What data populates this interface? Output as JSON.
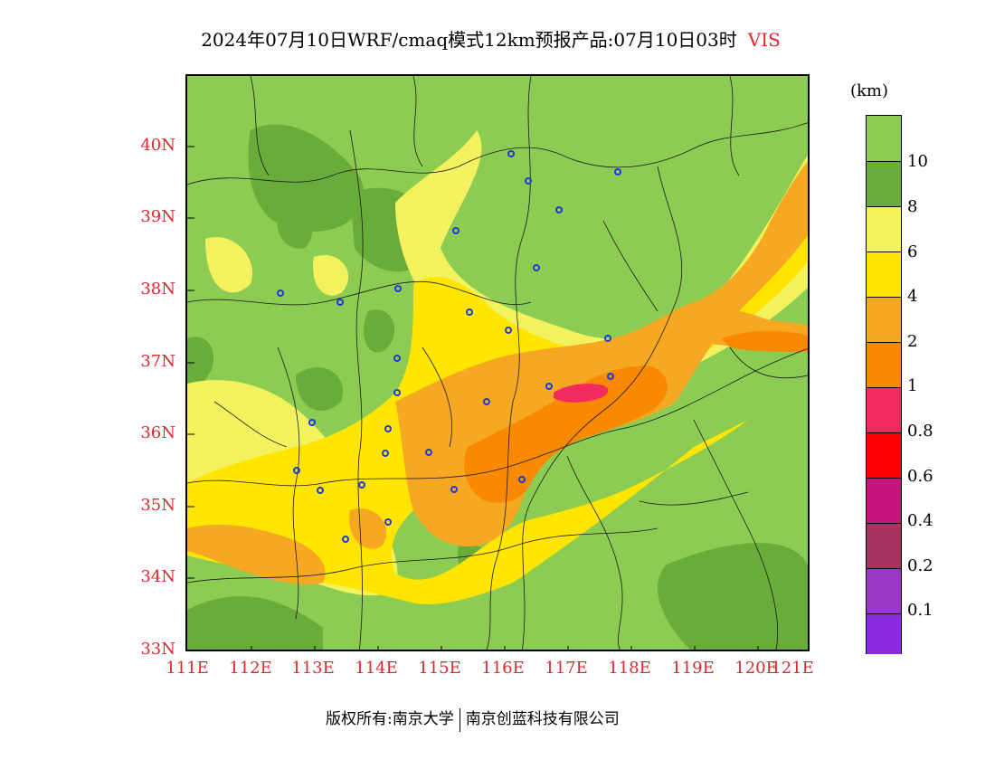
{
  "title": {
    "main": "2024年07月10日WRF/cmaq模式12km预报产品:07月10日03时",
    "variable": "VIS"
  },
  "map": {
    "lat_labels": [
      "40N",
      "39N",
      "38N",
      "37N",
      "36N",
      "35N",
      "34N",
      "33N"
    ],
    "lon_labels": [
      "111E",
      "112E",
      "113E",
      "114E",
      "115E",
      "116E",
      "117E",
      "118E",
      "119E",
      "120E",
      "121E"
    ],
    "field_colors": {
      "gt10": "#8ccc52",
      "8to10": "#6aac3a",
      "6to8": "#f2f25f",
      "4to6": "#ffe500",
      "2to4": "#f7a823",
      "1to2": "#f98a00",
      "0.8to1": "#f22a5e"
    }
  },
  "colorbar": {
    "unit": "(km)",
    "labels": [
      "10",
      "8",
      "6",
      "4",
      "2",
      "1",
      "0.8",
      "0.6",
      "0.4",
      "0.2",
      "0.1"
    ],
    "colors": [
      "#8ccc52",
      "#6aac3a",
      "#f2f25f",
      "#ffe500",
      "#f7a823",
      "#f98a00",
      "#f22a5e",
      "#ff0000",
      "#c8157e",
      "#a8315e",
      "#9a36c8",
      "#8a2be2"
    ]
  },
  "footer": {
    "left": "版权所有:南京大学",
    "right": "南京创蓝科技有限公司"
  }
}
